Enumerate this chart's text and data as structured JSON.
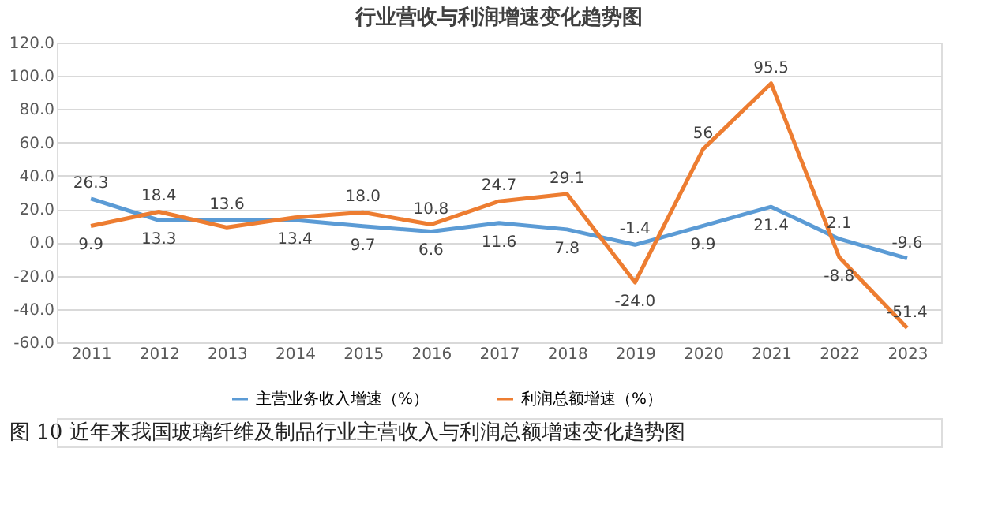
{
  "chart_data": {
    "type": "line",
    "title": "行业营收与利润增速变化趋势图",
    "categories": [
      "2011",
      "2012",
      "2013",
      "2014",
      "2015",
      "2016",
      "2017",
      "2018",
      "2019",
      "2020",
      "2021",
      "2022",
      "2023"
    ],
    "series": [
      {
        "name": "主营业务收入增速（%）",
        "color": "#5b9bd5",
        "values": [
          26.3,
          13.3,
          13.6,
          13.4,
          9.7,
          6.6,
          11.6,
          7.8,
          -1.4,
          9.9,
          21.4,
          2.1,
          -9.6
        ],
        "value_labels": [
          "26.3",
          "13.3",
          "13.6",
          "13.4",
          "9.7",
          "6.6",
          "11.6",
          "7.8",
          "-1.4",
          "9.9",
          "21.4",
          "2.1",
          "-9.6"
        ]
      },
      {
        "name": "利润总额增速（%）",
        "color": "#ed7d31",
        "values": [
          9.9,
          18.4,
          9,
          15,
          18.0,
          10.8,
          24.7,
          29.1,
          -24.0,
          56,
          95.5,
          -8.8,
          -51.4
        ],
        "value_labels": [
          "9.9",
          "18.4",
          null,
          null,
          "18.0",
          "10.8",
          "24.7",
          "29.1",
          "-24.0",
          "56",
          "95.5",
          "-8.8",
          "-51.4"
        ]
      }
    ],
    "ylim": [
      -60,
      120
    ],
    "yticks": [
      {
        "value": -60,
        "label": "-60.0"
      },
      {
        "value": -40,
        "label": "-40.0"
      },
      {
        "value": -20,
        "label": "-20.0"
      },
      {
        "value": 0,
        "label": "0.0"
      },
      {
        "value": 20,
        "label": "20.0"
      },
      {
        "value": 40,
        "label": "40.0"
      },
      {
        "value": 60,
        "label": "60.0"
      },
      {
        "value": 80,
        "label": "80.0"
      },
      {
        "value": 100,
        "label": "100.0"
      },
      {
        "value": 120,
        "label": "120.0"
      }
    ],
    "grid": "y",
    "legend": "bottom",
    "marker": "none",
    "line_style": "solid",
    "annotations": [
      "图 10   近年来我国玻璃纤维及制品行业主营收入与利润总额增速变化趋势图"
    ]
  }
}
